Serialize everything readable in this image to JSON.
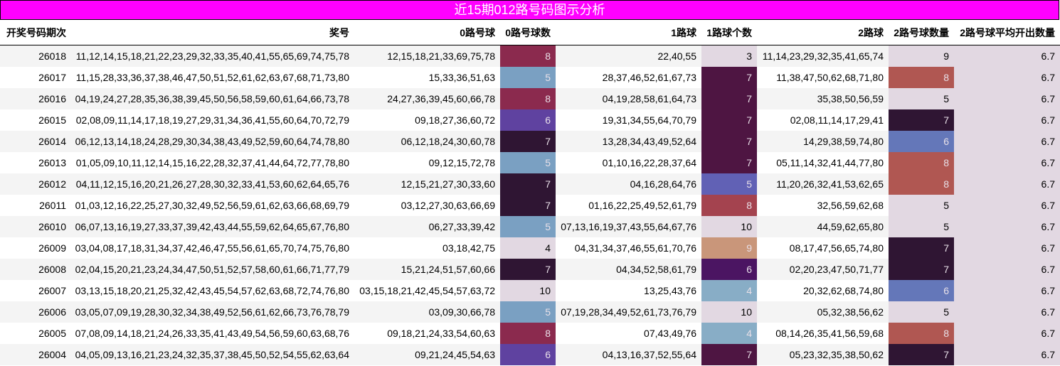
{
  "title": "近15期012路号码图示分析",
  "headers": [
    "开奖号码期次",
    "奖号",
    "0路号球",
    "0路号球数",
    "1路球",
    "1路球个数",
    "2路球",
    "2路号球数量",
    "2路号球平均开出数量"
  ],
  "rows": [
    {
      "issue": "26018",
      "numbers": "11,12,14,15,18,21,22,23,29,32,33,35,40,41,55,65,69,74,75,78",
      "r0": "12,15,18,21,33,69,75,78",
      "r0n": "8",
      "r0c": "#8b2a4e",
      "r1": "22,40,55",
      "r1n": "3",
      "r1c": "#e2d8e2",
      "r2": "11,14,23,29,32,35,41,65,74",
      "r2n": "9",
      "r2c": "#e2d8e2",
      "avg": "6.7"
    },
    {
      "issue": "26017",
      "numbers": "11,15,28,33,36,37,38,46,47,50,51,52,61,62,63,67,68,71,73,80",
      "r0": "15,33,36,51,63",
      "r0n": "5",
      "r0c": "#7aa0c2",
      "r1": "28,37,46,52,61,67,73",
      "r1n": "7",
      "r1c": "#4e1542",
      "r2": "11,38,47,50,62,68,71,80",
      "r2n": "8",
      "r2c": "#b05752",
      "avg": "6.7"
    },
    {
      "issue": "26016",
      "numbers": "04,19,24,27,28,35,36,38,39,45,50,56,58,59,60,61,64,66,73,78",
      "r0": "24,27,36,39,45,60,66,78",
      "r0n": "8",
      "r0c": "#8b2a4e",
      "r1": "04,19,28,58,61,64,73",
      "r1n": "7",
      "r1c": "#4e1542",
      "r2": "35,38,50,56,59",
      "r2n": "5",
      "r2c": "#e2d8e2",
      "avg": "6.7"
    },
    {
      "issue": "26015",
      "numbers": "02,08,09,11,14,17,18,19,27,29,31,34,36,41,55,60,64,70,72,79",
      "r0": "09,18,27,36,60,72",
      "r0n": "6",
      "r0c": "#5f42a0",
      "r1": "19,31,34,55,64,70,79",
      "r1n": "7",
      "r1c": "#4e1542",
      "r2": "02,08,11,14,17,29,41",
      "r2n": "7",
      "r2c": "#2f1533",
      "avg": "6.7"
    },
    {
      "issue": "26014",
      "numbers": "06,12,13,14,18,24,28,29,30,34,38,43,49,52,59,60,64,74,78,80",
      "r0": "06,12,18,24,30,60,78",
      "r0n": "7",
      "r0c": "#2f1533",
      "r1": "13,28,34,43,49,52,64",
      "r1n": "7",
      "r1c": "#4e1542",
      "r2": "14,29,38,59,74,80",
      "r2n": "6",
      "r2c": "#6477b9",
      "avg": "6.7"
    },
    {
      "issue": "26013",
      "numbers": "01,05,09,10,11,12,14,15,16,22,28,32,37,41,44,64,72,77,78,80",
      "r0": "09,12,15,72,78",
      "r0n": "5",
      "r0c": "#7aa0c2",
      "r1": "01,10,16,22,28,37,64",
      "r1n": "7",
      "r1c": "#4e1542",
      "r2": "05,11,14,32,41,44,77,80",
      "r2n": "8",
      "r2c": "#b05752",
      "avg": "6.7"
    },
    {
      "issue": "26012",
      "numbers": "04,11,12,15,16,20,21,26,27,28,30,32,33,41,53,60,62,64,65,76",
      "r0": "12,15,21,27,30,33,60",
      "r0n": "7",
      "r0c": "#2f1533",
      "r1": "04,16,28,64,76",
      "r1n": "5",
      "r1c": "#6161b5",
      "r2": "11,20,26,32,41,53,62,65",
      "r2n": "8",
      "r2c": "#b05752",
      "avg": "6.7"
    },
    {
      "issue": "26011",
      "numbers": "01,03,12,16,22,25,27,30,32,49,52,56,59,61,62,63,66,68,69,79",
      "r0": "03,12,27,30,63,66,69",
      "r0n": "7",
      "r0c": "#2f1533",
      "r1": "01,16,22,25,49,52,61,79",
      "r1n": "8",
      "r1c": "#a4434f",
      "r2": "32,56,59,62,68",
      "r2n": "5",
      "r2c": "#e2d8e2",
      "avg": "6.7"
    },
    {
      "issue": "26010",
      "numbers": "06,07,13,16,19,27,33,37,39,42,43,44,55,59,62,64,65,67,76,80",
      "r0": "06,27,33,39,42",
      "r0n": "5",
      "r0c": "#7aa0c2",
      "r1": "07,13,16,19,37,43,55,64,67,76",
      "r1n": "10",
      "r1c": "#e2d8e2",
      "r2": "44,59,62,65,80",
      "r2n": "5",
      "r2c": "#e2d8e2",
      "avg": "6.7"
    },
    {
      "issue": "26009",
      "numbers": "03,04,08,17,18,31,34,37,42,46,47,55,56,61,65,70,74,75,76,80",
      "r0": "03,18,42,75",
      "r0n": "4",
      "r0c": "#e2d8e2",
      "r1": "04,31,34,37,46,55,61,70,76",
      "r1n": "9",
      "r1c": "#c9967a",
      "r2": "08,17,47,56,65,74,80",
      "r2n": "7",
      "r2c": "#2f1533",
      "avg": "6.7"
    },
    {
      "issue": "26008",
      "numbers": "02,04,15,20,21,23,24,34,47,50,51,52,57,58,60,61,66,71,77,79",
      "r0": "15,21,24,51,57,60,66",
      "r0n": "7",
      "r0c": "#2f1533",
      "r1": "04,34,52,58,61,79",
      "r1n": "6",
      "r1c": "#4b1562",
      "r2": "02,20,23,47,50,71,77",
      "r2n": "7",
      "r2c": "#2f1533",
      "avg": "6.7"
    },
    {
      "issue": "26007",
      "numbers": "03,13,15,18,20,21,25,32,42,43,45,54,57,62,63,68,72,74,76,80",
      "r0": "03,15,18,21,42,45,54,57,63,72",
      "r0n": "10",
      "r0c": "#e2d8e2",
      "r1": "13,25,43,76",
      "r1n": "4",
      "r1c": "#88adc6",
      "r2": "20,32,62,68,74,80",
      "r2n": "6",
      "r2c": "#6477b9",
      "avg": "6.7"
    },
    {
      "issue": "26006",
      "numbers": "03,05,07,09,19,28,30,32,34,38,49,52,56,61,62,66,73,76,78,79",
      "r0": "03,09,30,66,78",
      "r0n": "5",
      "r0c": "#7aa0c2",
      "r1": "07,19,28,34,49,52,61,73,76,79",
      "r1n": "10",
      "r1c": "#e2d8e2",
      "r2": "05,32,38,56,62",
      "r2n": "5",
      "r2c": "#e2d8e2",
      "avg": "6.7"
    },
    {
      "issue": "26005",
      "numbers": "07,08,09,14,18,21,24,26,33,35,41,43,49,54,56,59,60,63,68,76",
      "r0": "09,18,21,24,33,54,60,63",
      "r0n": "8",
      "r0c": "#8b2a4e",
      "r1": "07,43,49,76",
      "r1n": "4",
      "r1c": "#88adc6",
      "r2": "08,14,26,35,41,56,59,68",
      "r2n": "8",
      "r2c": "#b05752",
      "avg": "6.7"
    },
    {
      "issue": "26004",
      "numbers": "04,05,09,13,16,21,23,24,32,35,37,38,45,50,52,54,55,62,63,64",
      "r0": "09,21,24,45,54,63",
      "r0n": "6",
      "r0c": "#5f42a0",
      "r1": "04,13,16,37,52,55,64",
      "r1n": "7",
      "r1c": "#4e1542",
      "r2": "05,23,32,35,38,50,62",
      "r2n": "7",
      "r2c": "#2f1533",
      "avg": "6.7"
    }
  ],
  "colors": {
    "title_bg": "#ff00ff",
    "avg_bg": "#e2d8e2",
    "light_cell": "#e2d8e2"
  }
}
